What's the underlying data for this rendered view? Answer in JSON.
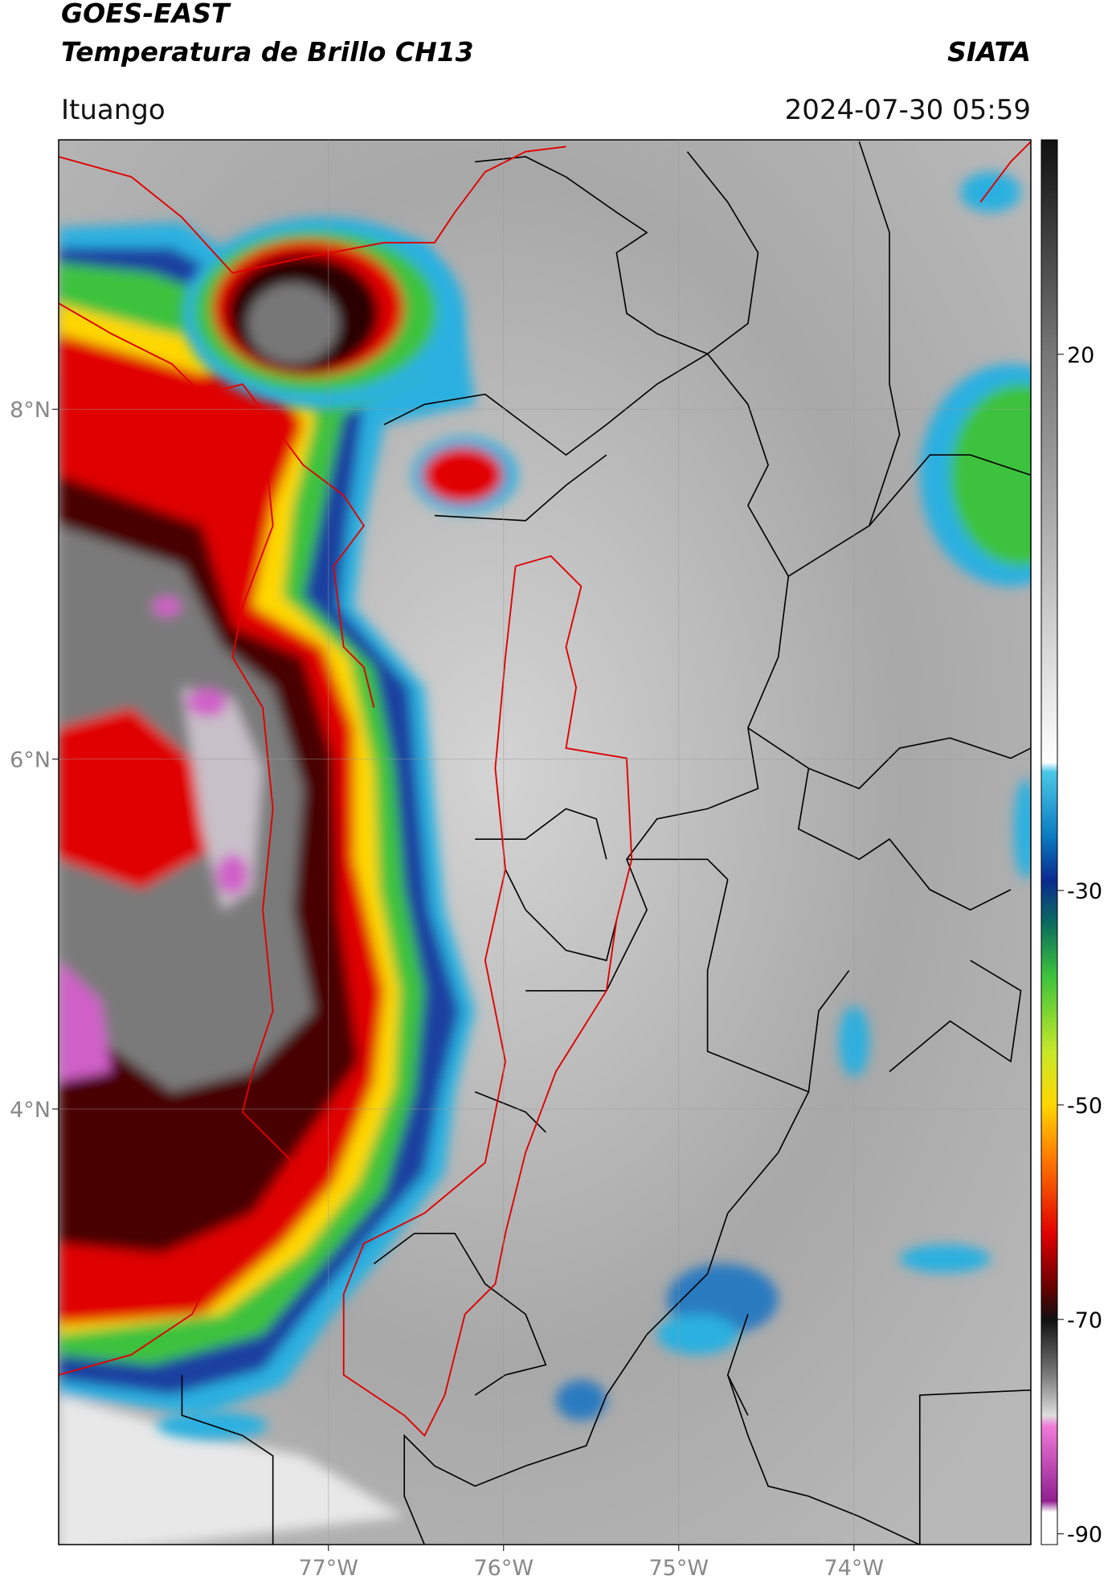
{
  "header": {
    "title_line1": "GOES-EAST",
    "title_line2": "Temperatura de Brillo CH13",
    "source": "SIATA",
    "location": "Ituango",
    "timestamp": "2024-07-30 05:59"
  },
  "map": {
    "lonlim": [
      -78.54,
      -72.99
    ],
    "latlim": [
      1.51,
      9.54
    ],
    "lon_ticks": [
      {
        "value": -77,
        "label": "77°W"
      },
      {
        "value": -76,
        "label": "76°W"
      },
      {
        "value": -75,
        "label": "75°W"
      },
      {
        "value": -74,
        "label": "74°W"
      }
    ],
    "lat_ticks": [
      {
        "value": 8,
        "label": "8°N"
      },
      {
        "value": 6,
        "label": "6°N"
      },
      {
        "value": 4,
        "label": "4°N"
      }
    ]
  },
  "colorbar": {
    "lim": [
      -91,
      40
    ],
    "ticks": [
      20,
      -30,
      -50,
      -70,
      -90
    ]
  }
}
